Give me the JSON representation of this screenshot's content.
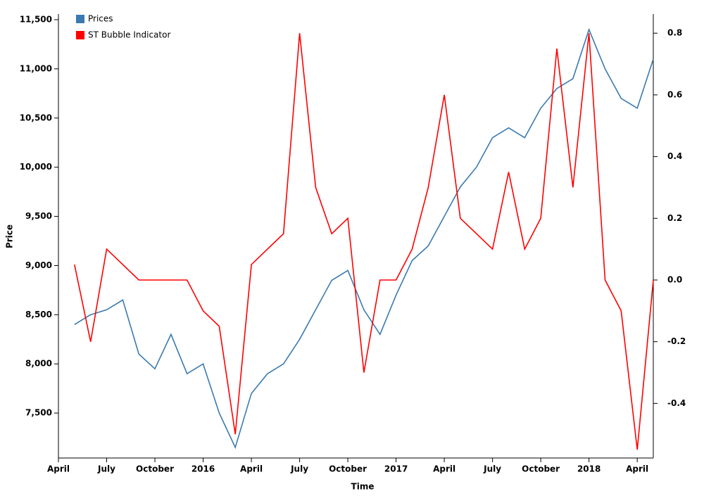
{
  "chart_data": {
    "type": "line",
    "x_label": "Time",
    "y_label": "Price",
    "x": [
      "2015-05",
      "2015-06",
      "2015-07",
      "2015-08",
      "2015-09",
      "2015-10",
      "2015-11",
      "2015-12",
      "2016-01",
      "2016-02",
      "2016-03",
      "2016-04",
      "2016-05",
      "2016-06",
      "2016-07",
      "2016-08",
      "2016-09",
      "2016-10",
      "2016-11",
      "2016-12",
      "2017-01",
      "2017-02",
      "2017-03",
      "2017-04",
      "2017-05",
      "2017-06",
      "2017-07",
      "2017-08",
      "2017-09",
      "2017-10",
      "2017-11",
      "2017-12",
      "2018-01",
      "2018-02",
      "2018-03",
      "2018-04",
      "2018-05"
    ],
    "series": [
      {
        "name": "Prices",
        "color": "#3a7ab0",
        "axis": "y",
        "values": [
          8400,
          8500,
          8550,
          8650,
          8100,
          7950,
          8300,
          7900,
          8000,
          7500,
          7150,
          7700,
          7900,
          8000,
          8250,
          8550,
          8850,
          8950,
          8550,
          8300,
          8700,
          9050,
          9200,
          9500,
          9800,
          10000,
          10300,
          10400,
          10300,
          10600,
          10800,
          10900,
          11400,
          11000,
          10700,
          10600,
          11100
        ]
      },
      {
        "name": "ST Bubble Indicator",
        "color": "#ff0000",
        "axis": "y2",
        "values": [
          0.05,
          -0.2,
          0.1,
          0.05,
          0,
          0,
          0,
          0,
          -0.1,
          -0.15,
          -0.5,
          0.05,
          0.1,
          0.15,
          0.8,
          0.3,
          0.15,
          0.2,
          -0.3,
          0,
          0,
          0.1,
          0.3,
          0.6,
          0.2,
          0.15,
          0.1,
          0.35,
          0.1,
          0.2,
          0.75,
          0.3,
          0.8,
          0,
          -0.1,
          -0.55,
          0
        ]
      }
    ],
    "xlim": [
      "2015-04",
      "2018-05"
    ],
    "xticks": [
      {
        "value": "2015-04",
        "label": "April"
      },
      {
        "value": "2015-07",
        "label": "July"
      },
      {
        "value": "2015-10",
        "label": "October"
      },
      {
        "value": "2016-01",
        "label": "2016"
      },
      {
        "value": "2016-04",
        "label": "April"
      },
      {
        "value": "2016-07",
        "label": "July"
      },
      {
        "value": "2016-10",
        "label": "October"
      },
      {
        "value": "2017-01",
        "label": "2017"
      },
      {
        "value": "2017-04",
        "label": "April"
      },
      {
        "value": "2017-07",
        "label": "July"
      },
      {
        "value": "2017-10",
        "label": "October"
      },
      {
        "value": "2018-01",
        "label": "2018"
      },
      {
        "value": "2018-04",
        "label": "April"
      }
    ],
    "ylim": [
      7043,
      11557
    ],
    "yticks": [
      {
        "value": 7500,
        "label": "7,500"
      },
      {
        "value": 8000,
        "label": "8,000"
      },
      {
        "value": 8500,
        "label": "8,500"
      },
      {
        "value": 9000,
        "label": "9,000"
      },
      {
        "value": 9500,
        "label": "9,500"
      },
      {
        "value": 10000,
        "label": "10,000"
      },
      {
        "value": 10500,
        "label": "10,500"
      },
      {
        "value": 11000,
        "label": "11,000"
      },
      {
        "value": 11500,
        "label": "11,500"
      }
    ],
    "y2lim": [
      -0.577,
      0.862
    ],
    "y2ticks": [
      -0.4,
      -0.2,
      {
        "value": 0,
        "label": "0.0"
      },
      0.2,
      0.4,
      0.6,
      0.8
    ],
    "legend": "top-left"
  }
}
